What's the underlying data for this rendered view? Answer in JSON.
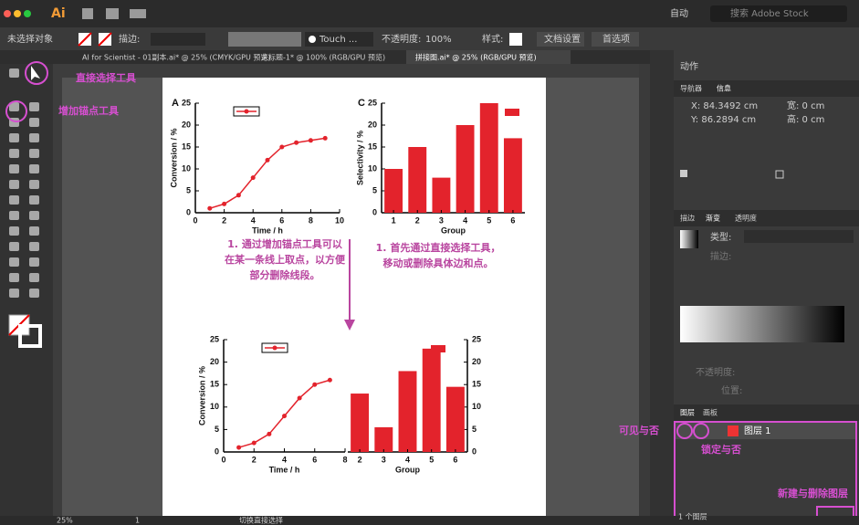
{
  "menu_bar": {
    "app": "Ai",
    "workspace": "自动",
    "search": "搜索 Adobe Stock"
  },
  "control_bar": {
    "selection": "未选择对象",
    "stroke": "描边:",
    "brush": "Touch ...",
    "opacity_label": "不透明度:",
    "opacity": "100%",
    "style": "样式:",
    "doc_setup": "文档设置",
    "prefs": "首选项"
  },
  "tabs": [
    "AI for Scientist - 01副本.ai* @ 25% (CMYK/GPU 预览)",
    "未标题-1* @ 100% (RGB/GPU 预览)",
    "拼接图.ai* @ 25% (RGB/GPU 预览)"
  ],
  "annotations": {
    "direct_select": "直接选择工具",
    "add_anchor": "增加锚点工具",
    "visible": "可见与否",
    "lock": "锁定与否",
    "new_delete": "新建与删除图层"
  },
  "panels": {
    "actions": "动作",
    "navigator": "导航器",
    "info": "信息",
    "x": "X: 84.3492 cm",
    "y": "Y: 86.2894 cm",
    "w": "宽: 0 cm",
    "h": "高: 0 cm",
    "stroke": "描边",
    "gradient": "渐变",
    "transparency": "透明度",
    "type": "类型:",
    "stroke2": "描边:",
    "opacity": "不透明度:",
    "position": "位置:",
    "layers": "图层",
    "artboards": "画板",
    "layer1": "图层 1",
    "layer_count": "1 个图层"
  },
  "status": {
    "zoom": "25%",
    "page": "1",
    "tool": "切换直接选择"
  },
  "artboard": {
    "notes": [
      [
        "1. 通过增加锚点工具可以",
        "在某一条线上取点，以方便",
        "部分删除线段。"
      ],
      [
        "1. 首先通过直接选择工具，",
        "移动或删除具体边和点。"
      ]
    ],
    "charts": [
      {
        "type": "line",
        "label": "A",
        "x_label": "Time / h",
        "y_label": "Conversion / %",
        "x": [
          1,
          2,
          3,
          4,
          5,
          6,
          7,
          8,
          9
        ],
        "values": [
          1,
          2,
          4,
          8,
          12,
          15,
          16,
          16.5,
          17
        ],
        "xlim": [
          0,
          10
        ],
        "ylim": [
          0,
          25
        ],
        "xticks": [
          0,
          2,
          4,
          6,
          8,
          10
        ],
        "yticks": [
          0,
          5,
          10,
          15,
          20,
          25
        ],
        "color": "#e3232c"
      },
      {
        "type": "bar",
        "label": "C",
        "x_label": "Group",
        "y_label": "Selectivity / %",
        "categories": [
          "1",
          "2",
          "3",
          "4",
          "5",
          "6"
        ],
        "values": [
          10,
          15,
          8,
          20,
          25,
          17
        ],
        "ylim": [
          0,
          25
        ],
        "yticks": [
          0,
          5,
          10,
          15,
          20,
          25
        ],
        "color": "#e3232c"
      },
      {
        "type": "line",
        "x_label": "Time / h",
        "y_label": "Conversion / %",
        "x": [
          1,
          2,
          3,
          4,
          5,
          6,
          7
        ],
        "values": [
          1,
          2,
          4,
          8,
          12,
          15,
          16
        ],
        "xlim": [
          0,
          8
        ],
        "ylim": [
          0,
          25
        ],
        "xticks": [
          0,
          2,
          4,
          6,
          8
        ],
        "yticks": [
          0,
          5,
          10,
          15,
          20,
          25
        ],
        "color": "#e3232c"
      },
      {
        "type": "bar",
        "x_label": "Group",
        "categories": [
          "2",
          "3",
          "4",
          "5",
          "6"
        ],
        "values": [
          13,
          5.5,
          18,
          23,
          14.5
        ],
        "ylim": [
          0,
          25
        ],
        "yticks": [
          0,
          5,
          10,
          15,
          20,
          25
        ],
        "y_axis": "right",
        "color": "#e3232c"
      }
    ]
  }
}
